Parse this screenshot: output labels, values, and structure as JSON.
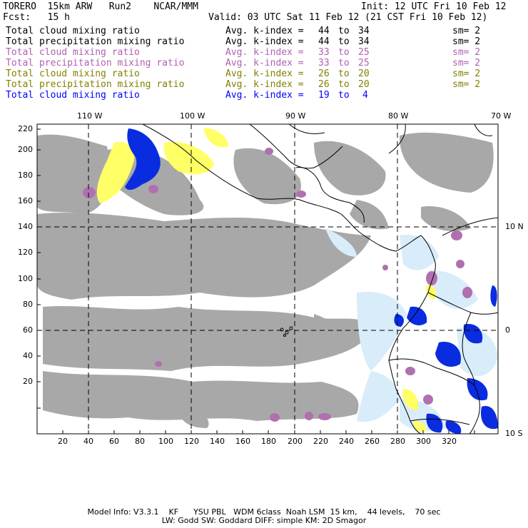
{
  "header": {
    "model": "TORERO  15km ARW   Run2    NCAR/MMM",
    "init": "Init: 12 UTC Fri 10 Feb 12",
    "fcst": "Fcst:   15 h",
    "valid": "Valid: 03 UTC Sat 11 Feb 12 (21 CST Fri 10 Feb 12)"
  },
  "fields": [
    {
      "name": "Total cloud mixing ratio",
      "k_label": "Avg. k-index =",
      "from": "44",
      "to_word": "to",
      "to": "34",
      "sm": "sm= 2",
      "color": "#000000"
    },
    {
      "name": "Total precipitation mixing ratio",
      "k_label": "Avg. k-index =",
      "from": "44",
      "to_word": "to",
      "to": "34",
      "sm": "sm= 2",
      "color": "#000000"
    },
    {
      "name": "Total cloud mixing ratio",
      "k_label": "Avg. k-index =",
      "from": "33",
      "to_word": "to",
      "to": "25",
      "sm": "sm= 2",
      "color": "#b060b0"
    },
    {
      "name": "Total precipitation mixing ratio",
      "k_label": "Avg. k-index =",
      "from": "33",
      "to_word": "to",
      "to": "25",
      "sm": "sm= 2",
      "color": "#b060b0"
    },
    {
      "name": "Total cloud mixing ratio",
      "k_label": "Avg. k-index =",
      "from": "26",
      "to_word": "to",
      "to": "20",
      "sm": "sm= 2",
      "color": "#808000"
    },
    {
      "name": "Total precipitation mixing ratio",
      "k_label": "Avg. k-index =",
      "from": "26",
      "to_word": "to",
      "to": "20",
      "sm": "sm= 2",
      "color": "#808000"
    },
    {
      "name": "Total cloud mixing ratio",
      "k_label": "Avg. k-index =",
      "from": "19",
      "to_word": "to",
      "to": "4",
      "sm": "",
      "color": "#0000ff"
    }
  ],
  "map": {
    "lon_labels": [
      "110 W",
      "100 W",
      "90 W",
      "80 W",
      "70 W"
    ],
    "lat_labels": [
      "10 N",
      "0",
      "10 S"
    ],
    "x_ticks": [
      "20",
      "40",
      "60",
      "80",
      "100",
      "120",
      "140",
      "160",
      "180",
      "200",
      "220",
      "240",
      "260",
      "280",
      "300",
      "320"
    ],
    "y_ticks": [
      "220",
      "200",
      "180",
      "160",
      "140",
      "120",
      "100",
      "80",
      "60",
      "40",
      "20"
    ],
    "colors": {
      "cloud": "#a8a8a8",
      "purple": "#b070b0",
      "yellow": "#ffff66",
      "blue": "#0a2ce0",
      "lightblue": "#d8ecfa",
      "coast": "#000000"
    }
  },
  "footer": {
    "line1": "Model Info: V3.3.1    KF      YSU PBL   WDM 6class  Noah LSM  15 km,    44 levels,    70 sec",
    "line2": "LW: Godd SW: Goddard DIFF: simple KM: 2D Smagor"
  }
}
